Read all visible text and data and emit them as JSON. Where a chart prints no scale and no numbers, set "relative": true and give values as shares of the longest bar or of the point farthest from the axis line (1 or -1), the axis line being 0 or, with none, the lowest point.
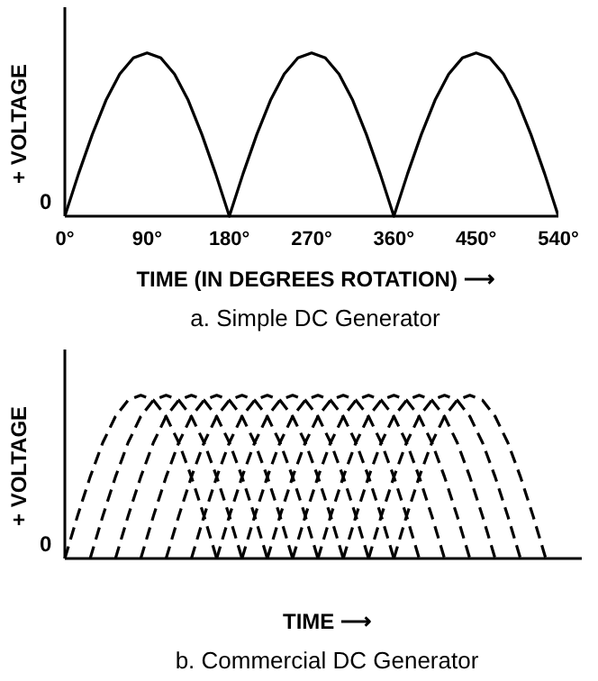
{
  "chart_data": [
    {
      "type": "line",
      "title": "a. Simple DC Generator",
      "xlabel": "TIME (IN DEGREES ROTATION) ⟶",
      "ylabel": "+ VOLTAGE",
      "annotations": [
        "0"
      ],
      "relative": true,
      "color": "#000000",
      "x": [
        0,
        15,
        30,
        45,
        60,
        75,
        90,
        105,
        120,
        135,
        150,
        165,
        180,
        195,
        210,
        225,
        240,
        255,
        270,
        285,
        300,
        315,
        330,
        345,
        360,
        375,
        390,
        405,
        420,
        435,
        450,
        465,
        480,
        495,
        510,
        525,
        540
      ],
      "values": [
        0,
        0.26,
        0.5,
        0.71,
        0.87,
        0.97,
        1,
        0.97,
        0.87,
        0.71,
        0.5,
        0.26,
        0,
        0.26,
        0.5,
        0.71,
        0.87,
        0.97,
        1,
        0.97,
        0.87,
        0.71,
        0.5,
        0.26,
        0,
        0.26,
        0.5,
        0.71,
        0.87,
        0.97,
        1,
        0.97,
        0.87,
        0.71,
        0.5,
        0.26,
        0
      ],
      "xlim": [
        0,
        540
      ],
      "xticks": [
        {
          "value": 0,
          "label": "0°"
        },
        {
          "value": 90,
          "label": "90°"
        },
        {
          "value": 180,
          "label": "180°"
        },
        {
          "value": 270,
          "label": "270°"
        },
        {
          "value": 360,
          "label": "360°"
        },
        {
          "value": 450,
          "label": "450°"
        },
        {
          "value": 540,
          "label": "540°"
        }
      ]
    },
    {
      "type": "line",
      "title": "b. Commercial DC Generator",
      "xlabel": "TIME ⟶",
      "ylabel": "+ VOLTAGE",
      "annotations": [
        "0"
      ],
      "relative": true,
      "line_style": "dashed",
      "categories": [
        null,
        null,
        null,
        null,
        null,
        null,
        null,
        null,
        null,
        null,
        null,
        null,
        null,
        null,
        null,
        null,
        null,
        null,
        null,
        null,
        null,
        null,
        null,
        null,
        null,
        null,
        null,
        null,
        null,
        null,
        null,
        null,
        null,
        null,
        null,
        null,
        null,
        null,
        null
      ],
      "series": [
        {
          "color": "#000000",
          "values": [
            0,
            0.26,
            0.5,
            0.71,
            0.87,
            0.97,
            1,
            0.97,
            0.87,
            0.71,
            0.5,
            0.26,
            0,
            null,
            null,
            null,
            null,
            null,
            null,
            null,
            null,
            null,
            null,
            null,
            null,
            null,
            null,
            null,
            null,
            null,
            null,
            null,
            null,
            null,
            null,
            null,
            null,
            null,
            null
          ]
        },
        {
          "color": "#000000",
          "values": [
            null,
            null,
            0,
            0.26,
            0.5,
            0.71,
            0.87,
            0.97,
            1,
            0.97,
            0.87,
            0.71,
            0.5,
            0.26,
            0,
            null,
            null,
            null,
            null,
            null,
            null,
            null,
            null,
            null,
            null,
            null,
            null,
            null,
            null,
            null,
            null,
            null,
            null,
            null,
            null,
            null,
            null,
            null,
            null
          ]
        },
        {
          "color": "#000000",
          "values": [
            null,
            null,
            null,
            null,
            0,
            0.26,
            0.5,
            0.71,
            0.87,
            0.97,
            1,
            0.97,
            0.87,
            0.71,
            0.5,
            0.26,
            0,
            null,
            null,
            null,
            null,
            null,
            null,
            null,
            null,
            null,
            null,
            null,
            null,
            null,
            null,
            null,
            null,
            null,
            null,
            null,
            null,
            null,
            null
          ]
        },
        {
          "color": "#000000",
          "values": [
            null,
            null,
            null,
            null,
            null,
            null,
            0,
            0.26,
            0.5,
            0.71,
            0.87,
            0.97,
            1,
            0.97,
            0.87,
            0.71,
            0.5,
            0.26,
            0,
            null,
            null,
            null,
            null,
            null,
            null,
            null,
            null,
            null,
            null,
            null,
            null,
            null,
            null,
            null,
            null,
            null,
            null,
            null,
            null
          ]
        },
        {
          "color": "#000000",
          "values": [
            null,
            null,
            null,
            null,
            null,
            null,
            null,
            null,
            0,
            0.26,
            0.5,
            0.71,
            0.87,
            0.97,
            1,
            0.97,
            0.87,
            0.71,
            0.5,
            0.26,
            0,
            null,
            null,
            null,
            null,
            null,
            null,
            null,
            null,
            null,
            null,
            null,
            null,
            null,
            null,
            null,
            null,
            null,
            null
          ]
        },
        {
          "color": "#000000",
          "values": [
            null,
            null,
            null,
            null,
            null,
            null,
            null,
            null,
            null,
            null,
            0,
            0.26,
            0.5,
            0.71,
            0.87,
            0.97,
            1,
            0.97,
            0.87,
            0.71,
            0.5,
            0.26,
            0,
            null,
            null,
            null,
            null,
            null,
            null,
            null,
            null,
            null,
            null,
            null,
            null,
            null,
            null,
            null,
            null
          ]
        },
        {
          "color": "#000000",
          "values": [
            null,
            null,
            null,
            null,
            null,
            null,
            null,
            null,
            null,
            null,
            null,
            null,
            0,
            0.26,
            0.5,
            0.71,
            0.87,
            0.97,
            1,
            0.97,
            0.87,
            0.71,
            0.5,
            0.26,
            0,
            null,
            null,
            null,
            null,
            null,
            null,
            null,
            null,
            null,
            null,
            null,
            null,
            null,
            null
          ]
        },
        {
          "color": "#000000",
          "values": [
            null,
            null,
            null,
            null,
            null,
            null,
            null,
            null,
            null,
            null,
            null,
            null,
            null,
            null,
            0,
            0.26,
            0.5,
            0.71,
            0.87,
            0.97,
            1,
            0.97,
            0.87,
            0.71,
            0.5,
            0.26,
            0,
            null,
            null,
            null,
            null,
            null,
            null,
            null,
            null,
            null,
            null,
            null,
            null
          ]
        },
        {
          "color": "#000000",
          "values": [
            null,
            null,
            null,
            null,
            null,
            null,
            null,
            null,
            null,
            null,
            null,
            null,
            null,
            null,
            null,
            null,
            0,
            0.26,
            0.5,
            0.71,
            0.87,
            0.97,
            1,
            0.97,
            0.87,
            0.71,
            0.5,
            0.26,
            0,
            null,
            null,
            null,
            null,
            null,
            null,
            null,
            null,
            null,
            null
          ]
        },
        {
          "color": "#000000",
          "values": [
            null,
            null,
            null,
            null,
            null,
            null,
            null,
            null,
            null,
            null,
            null,
            null,
            null,
            null,
            null,
            null,
            null,
            null,
            0,
            0.26,
            0.5,
            0.71,
            0.87,
            0.97,
            1,
            0.97,
            0.87,
            0.71,
            0.5,
            0.26,
            0,
            null,
            null,
            null,
            null,
            null,
            null,
            null,
            null
          ]
        },
        {
          "color": "#000000",
          "values": [
            null,
            null,
            null,
            null,
            null,
            null,
            null,
            null,
            null,
            null,
            null,
            null,
            null,
            null,
            null,
            null,
            null,
            null,
            null,
            null,
            0,
            0.26,
            0.5,
            0.71,
            0.87,
            0.97,
            1,
            0.97,
            0.87,
            0.71,
            0.5,
            0.26,
            0,
            null,
            null,
            null,
            null,
            null,
            null
          ]
        },
        {
          "color": "#000000",
          "values": [
            null,
            null,
            null,
            null,
            null,
            null,
            null,
            null,
            null,
            null,
            null,
            null,
            null,
            null,
            null,
            null,
            null,
            null,
            null,
            null,
            null,
            null,
            0,
            0.26,
            0.5,
            0.71,
            0.87,
            0.97,
            1,
            0.97,
            0.87,
            0.71,
            0.5,
            0.26,
            0,
            null,
            null,
            null,
            null
          ]
        },
        {
          "color": "#000000",
          "values": [
            null,
            null,
            null,
            null,
            null,
            null,
            null,
            null,
            null,
            null,
            null,
            null,
            null,
            null,
            null,
            null,
            null,
            null,
            null,
            null,
            null,
            null,
            null,
            null,
            0,
            0.26,
            0.5,
            0.71,
            0.87,
            0.97,
            1,
            0.97,
            0.87,
            0.71,
            0.5,
            0.26,
            0,
            null,
            null
          ]
        },
        {
          "color": "#000000",
          "values": [
            null,
            null,
            null,
            null,
            null,
            null,
            null,
            null,
            null,
            null,
            null,
            null,
            null,
            null,
            null,
            null,
            null,
            null,
            null,
            null,
            null,
            null,
            null,
            null,
            null,
            null,
            0,
            0.26,
            0.5,
            0.71,
            0.87,
            0.97,
            1,
            0.97,
            0.87,
            0.71,
            0.5,
            0.26,
            0
          ]
        }
      ]
    }
  ]
}
